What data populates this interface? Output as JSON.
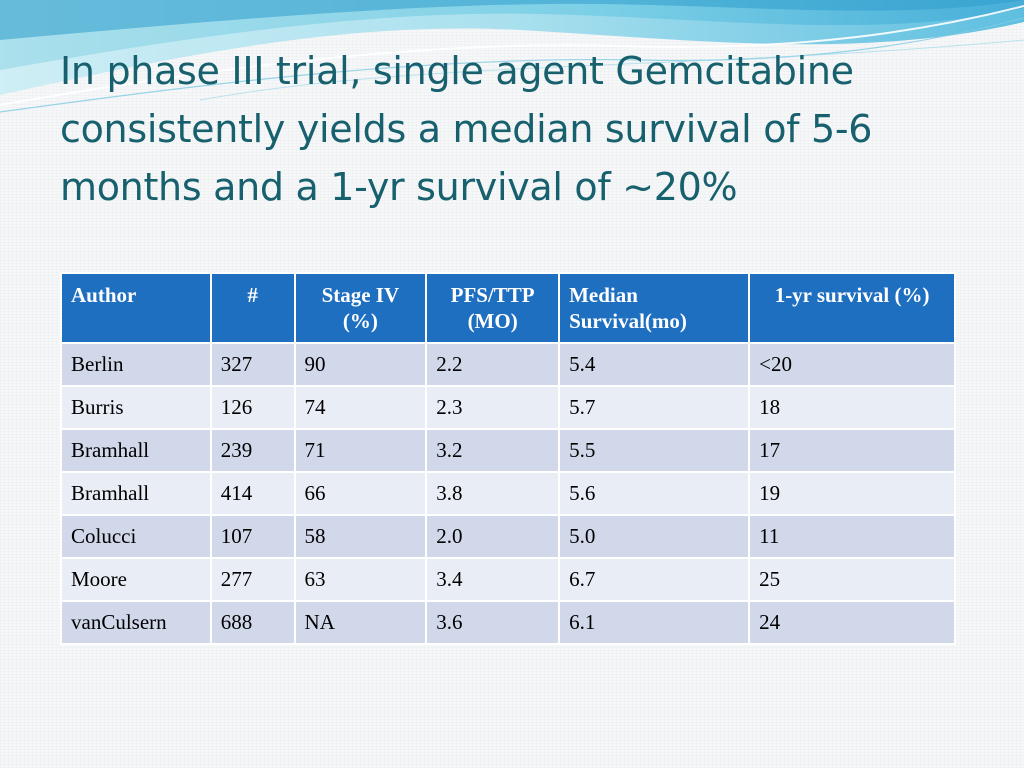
{
  "slide": {
    "title": "In phase III trial, single agent Gemcitabine consistently yields a median survival of 5-6 months and a 1-yr survival of ~20%"
  },
  "table": {
    "headers": [
      {
        "label": "Author",
        "align": "left"
      },
      {
        "label": "#",
        "align": "center"
      },
      {
        "label": "Stage IV (%)",
        "align": "center"
      },
      {
        "label": "PFS/TTP (MO)",
        "align": "center"
      },
      {
        "label": "Median Survival(mo)",
        "align": "left"
      },
      {
        "label": "1-yr  survival (%)",
        "align": "center"
      }
    ],
    "rows": [
      [
        "Berlin",
        "327",
        "90",
        "2.2",
        "5.4",
        "<20"
      ],
      [
        "Burris",
        "126",
        "74",
        "2.3",
        "5.7",
        "18"
      ],
      [
        "Bramhall",
        "239",
        "71",
        "3.2",
        "5.5",
        "17"
      ],
      [
        "Bramhall",
        "414",
        "66",
        "3.8",
        "5.6",
        "19"
      ],
      [
        "Colucci",
        "107",
        "58",
        "2.0",
        "5.0",
        "11"
      ],
      [
        "Moore",
        "277",
        "63",
        "3.4",
        "6.7",
        "25"
      ],
      [
        "vanCulsern",
        "688",
        "NA",
        "3.6",
        "6.1",
        "24"
      ]
    ]
  },
  "colors": {
    "title": "#17606e",
    "header_bg": "#1f6fc0",
    "row_odd": "#d0d8ea",
    "row_even": "#e9edf5",
    "wave_light": "#bfe6f0",
    "wave_mid": "#7fd0e6",
    "wave_dark": "#4fb4d8"
  }
}
